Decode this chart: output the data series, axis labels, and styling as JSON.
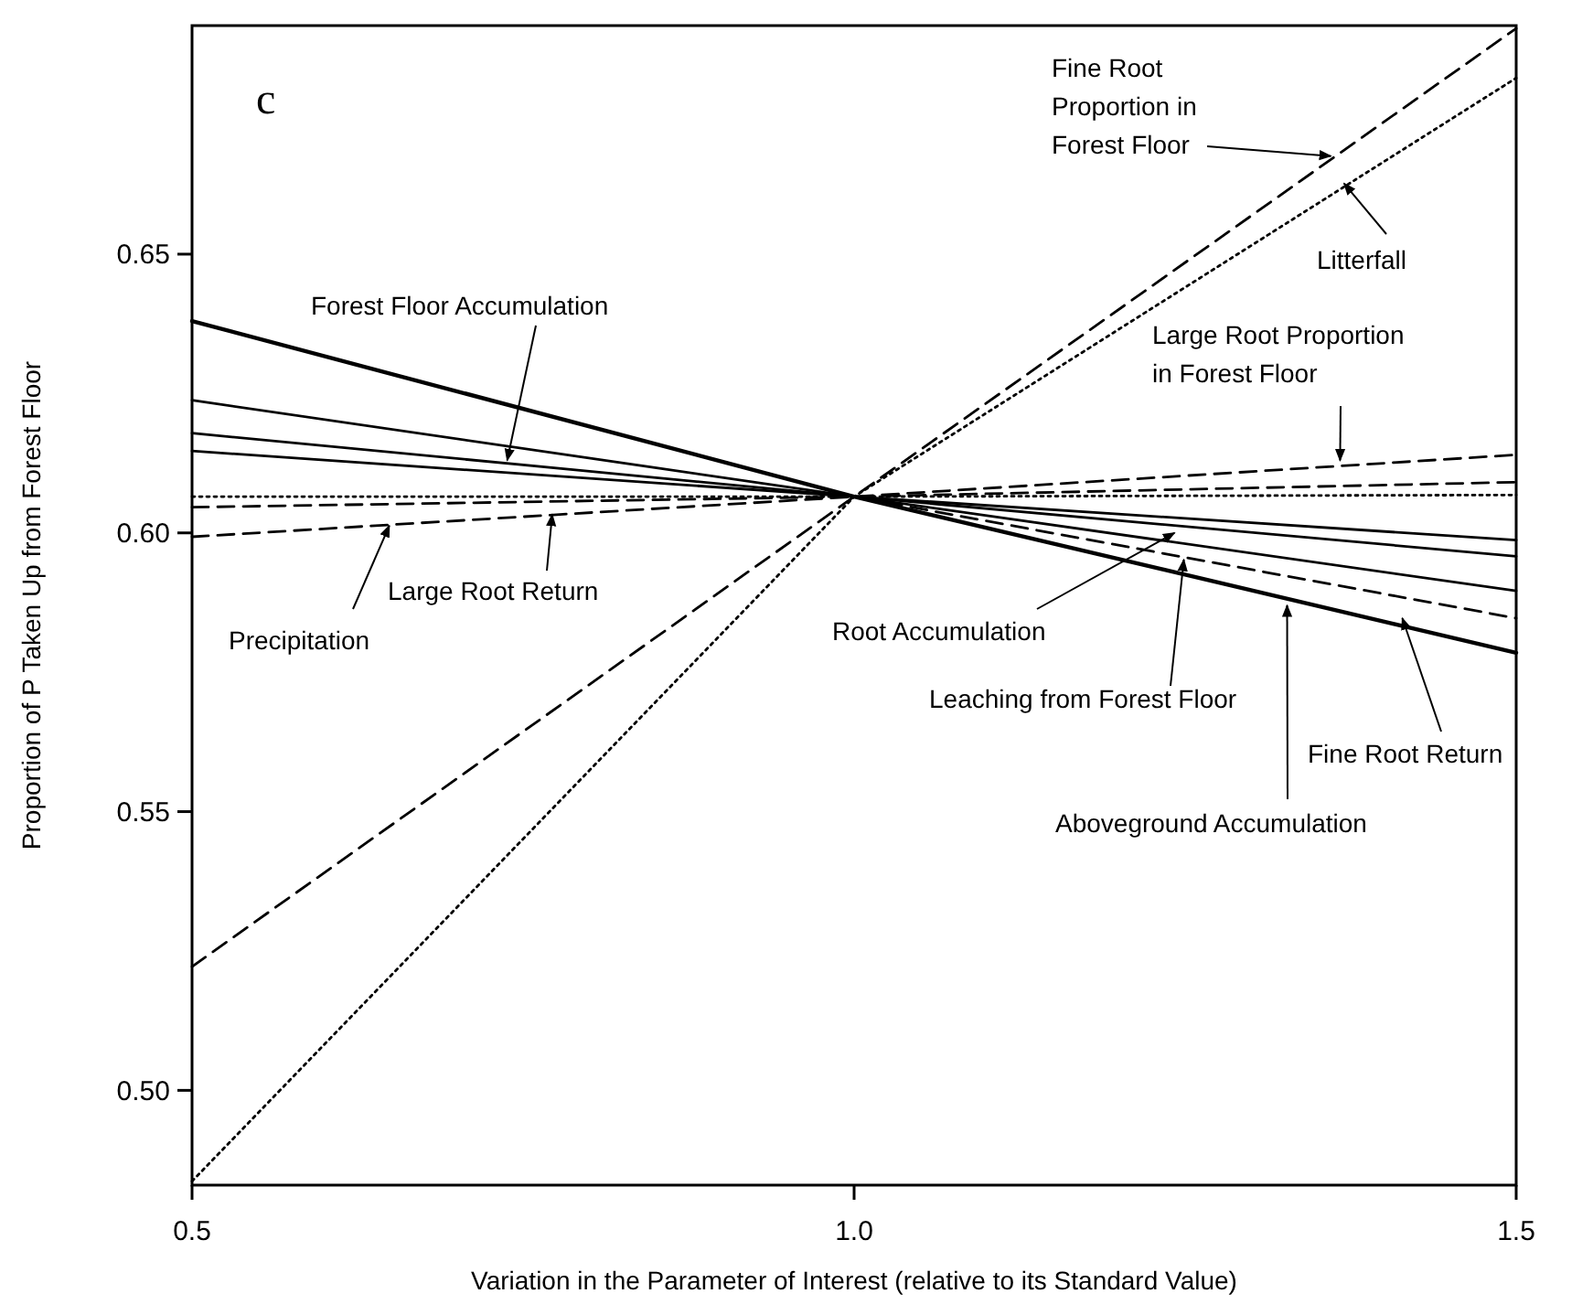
{
  "chart_data": {
    "type": "line",
    "title": "c",
    "xlabel": "Variation in the Parameter of Interest (relative to its Standard Value)",
    "ylabel": "Proportion of P Taken Up from Forest Floor",
    "x": [
      0.5,
      1.0,
      1.5
    ],
    "series": [
      {
        "color": "#000000",
        "line_style": "solid",
        "values": [
          0.638,
          0.6065,
          0.5785
        ]
      },
      {
        "color": "#000000",
        "line_style": "solid",
        "values": [
          0.6238,
          0.6065,
          0.5896
        ]
      },
      {
        "color": "#000000",
        "line_style": "solid",
        "values": [
          0.6179,
          0.6065,
          0.5958
        ]
      },
      {
        "color": "#000000",
        "line_style": "solid",
        "values": [
          0.6147,
          0.6065,
          0.5987
        ]
      },
      {
        "color": "#000000",
        "line_style": "dashed",
        "values": [
          0.638,
          0.6065,
          0.5847
        ]
      },
      {
        "color": "#000000",
        "line_style": "dotted",
        "values": [
          0.6065,
          0.6065,
          0.6068
        ]
      },
      {
        "color": "#000000",
        "line_style": "dashed",
        "values": [
          0.6046,
          0.6065,
          0.6091
        ]
      },
      {
        "color": "#000000",
        "line_style": "dashed",
        "values": [
          0.5993,
          0.6065,
          0.614
        ]
      },
      {
        "color": "#000000",
        "line_style": "dashed",
        "values": [
          0.5222,
          0.6065,
          0.6905
        ]
      },
      {
        "color": "#000000",
        "line_style": "dotted",
        "values": [
          0.4837,
          0.6065,
          0.6816
        ]
      }
    ],
    "xlim": [
      0.5,
      1.5
    ],
    "xticks": [
      0.5,
      {
        "value": 1.0,
        "label": "1.0"
      },
      1.5
    ],
    "ylim": [
      0.483,
      0.691
    ],
    "yticks": [
      {
        "value": 0.5,
        "label": "0.50"
      },
      {
        "value": 0.55,
        "label": "0.55"
      },
      {
        "value": 0.6,
        "label": "0.60"
      },
      {
        "value": 0.65,
        "label": "0.65"
      }
    ],
    "grid": false,
    "marker": "none",
    "annotations": [
      {
        "text": "Forest Floor Accumulation",
        "x": 0.738,
        "y": 0.613
      },
      {
        "text": "Large Root Return",
        "x": 0.772,
        "y": 0.6033
      },
      {
        "text": "Precipitation",
        "x": 0.649,
        "y": 0.6013
      },
      {
        "text": "Root Accumulation",
        "x": 1.242,
        "y": 0.6
      },
      {
        "text": "Leaching from Forest Floor",
        "x": 1.249,
        "y": 0.5952
      },
      {
        "text": "Fine Root Return",
        "x": 1.414,
        "y": 0.5847
      },
      {
        "text": "Aboveground Accumulation",
        "x": 1.327,
        "y": 0.587
      },
      {
        "text": "Large Root Proportion\nin Forest Floor",
        "x": 1.367,
        "y": 0.613
      },
      {
        "text": "Fine Root\nProportion in\nForest Floor",
        "x": 1.36,
        "y": 0.6676
      },
      {
        "text": "Litterfall",
        "x": 1.37,
        "y": 0.6627
      }
    ]
  }
}
